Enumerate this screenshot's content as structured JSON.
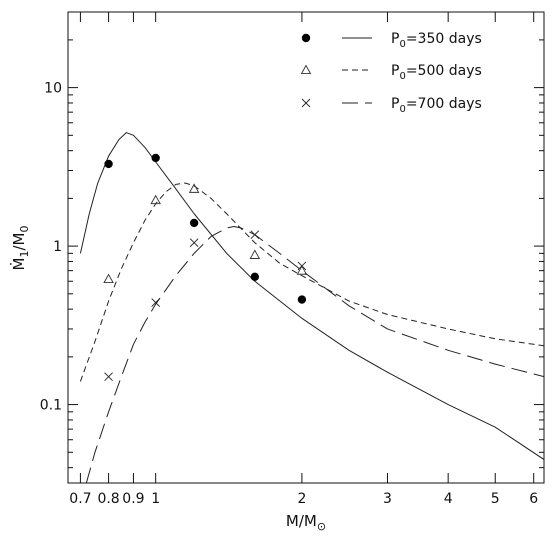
{
  "chart_data": {
    "type": "line",
    "xscale": "log",
    "yscale": "log",
    "xlim": [
      0.66,
      6.3
    ],
    "ylim": [
      0.032,
      30
    ],
    "grid": false,
    "legend_position": "top-right",
    "x_ticks": [
      {
        "value": 0.7,
        "label": "0.7"
      },
      {
        "value": 0.8,
        "label": "0.8"
      },
      {
        "value": 0.9,
        "label": "0.9"
      },
      {
        "value": 1,
        "label": "1"
      },
      {
        "value": 2,
        "label": "2"
      },
      {
        "value": 3,
        "label": "3"
      },
      {
        "value": 4,
        "label": "4"
      },
      {
        "value": 5,
        "label": "5"
      },
      {
        "value": 6,
        "label": "6"
      }
    ],
    "y_ticks": [
      {
        "value": 0.1,
        "label": "0.1"
      },
      {
        "value": 1,
        "label": "1"
      },
      {
        "value": 10,
        "label": "10"
      }
    ],
    "series": [
      {
        "name": "P₀=350 days",
        "marker": "filled-circle",
        "line_style": "solid",
        "points": [
          {
            "x": 0.8,
            "y": 3.3
          },
          {
            "x": 1.0,
            "y": 3.6
          },
          {
            "x": 1.2,
            "y": 1.4
          },
          {
            "x": 1.6,
            "y": 0.64
          },
          {
            "x": 2.0,
            "y": 0.46
          }
        ],
        "curve": [
          {
            "x": 0.7,
            "y": 0.9
          },
          {
            "x": 0.73,
            "y": 1.6
          },
          {
            "x": 0.76,
            "y": 2.5
          },
          {
            "x": 0.8,
            "y": 3.7
          },
          {
            "x": 0.84,
            "y": 4.7
          },
          {
            "x": 0.87,
            "y": 5.2
          },
          {
            "x": 0.9,
            "y": 5.0
          },
          {
            "x": 0.95,
            "y": 4.2
          },
          {
            "x": 1.0,
            "y": 3.4
          },
          {
            "x": 1.1,
            "y": 2.3
          },
          {
            "x": 1.2,
            "y": 1.6
          },
          {
            "x": 1.4,
            "y": 0.9
          },
          {
            "x": 1.6,
            "y": 0.6
          },
          {
            "x": 2.0,
            "y": 0.35
          },
          {
            "x": 2.5,
            "y": 0.22
          },
          {
            "x": 3.0,
            "y": 0.16
          },
          {
            "x": 4.0,
            "y": 0.1
          },
          {
            "x": 5.0,
            "y": 0.072
          },
          {
            "x": 6.3,
            "y": 0.045
          }
        ]
      },
      {
        "name": "P₀=500 days",
        "marker": "open-triangle",
        "line_style": "short-dash",
        "points": [
          {
            "x": 0.8,
            "y": 0.62
          },
          {
            "x": 1.0,
            "y": 1.95
          },
          {
            "x": 1.2,
            "y": 2.3
          },
          {
            "x": 1.6,
            "y": 0.88
          },
          {
            "x": 2.0,
            "y": 0.7
          }
        ],
        "curve": [
          {
            "x": 0.7,
            "y": 0.14
          },
          {
            "x": 0.75,
            "y": 0.25
          },
          {
            "x": 0.8,
            "y": 0.45
          },
          {
            "x": 0.85,
            "y": 0.72
          },
          {
            "x": 0.9,
            "y": 1.05
          },
          {
            "x": 0.95,
            "y": 1.45
          },
          {
            "x": 1.0,
            "y": 1.85
          },
          {
            "x": 1.05,
            "y": 2.2
          },
          {
            "x": 1.1,
            "y": 2.45
          },
          {
            "x": 1.15,
            "y": 2.5
          },
          {
            "x": 1.2,
            "y": 2.4
          },
          {
            "x": 1.3,
            "y": 2.0
          },
          {
            "x": 1.4,
            "y": 1.6
          },
          {
            "x": 1.6,
            "y": 1.05
          },
          {
            "x": 1.8,
            "y": 0.78
          },
          {
            "x": 2.0,
            "y": 0.65
          },
          {
            "x": 2.5,
            "y": 0.45
          },
          {
            "x": 3.0,
            "y": 0.37
          },
          {
            "x": 4.0,
            "y": 0.3
          },
          {
            "x": 5.0,
            "y": 0.26
          },
          {
            "x": 6.3,
            "y": 0.235
          }
        ]
      },
      {
        "name": "P₀=700 days",
        "marker": "cross",
        "line_style": "long-dash",
        "points": [
          {
            "x": 0.8,
            "y": 0.15
          },
          {
            "x": 1.0,
            "y": 0.44
          },
          {
            "x": 1.2,
            "y": 1.05
          },
          {
            "x": 1.6,
            "y": 1.18
          },
          {
            "x": 2.0,
            "y": 0.75
          }
        ],
        "curve": [
          {
            "x": 0.72,
            "y": 0.032
          },
          {
            "x": 0.75,
            "y": 0.05
          },
          {
            "x": 0.8,
            "y": 0.09
          },
          {
            "x": 0.85,
            "y": 0.15
          },
          {
            "x": 0.9,
            "y": 0.24
          },
          {
            "x": 0.95,
            "y": 0.33
          },
          {
            "x": 1.0,
            "y": 0.43
          },
          {
            "x": 1.1,
            "y": 0.65
          },
          {
            "x": 1.2,
            "y": 0.9
          },
          {
            "x": 1.3,
            "y": 1.15
          },
          {
            "x": 1.4,
            "y": 1.3
          },
          {
            "x": 1.45,
            "y": 1.33
          },
          {
            "x": 1.5,
            "y": 1.3
          },
          {
            "x": 1.6,
            "y": 1.18
          },
          {
            "x": 1.8,
            "y": 0.9
          },
          {
            "x": 2.0,
            "y": 0.7
          },
          {
            "x": 2.5,
            "y": 0.42
          },
          {
            "x": 3.0,
            "y": 0.3
          },
          {
            "x": 4.0,
            "y": 0.22
          },
          {
            "x": 5.0,
            "y": 0.18
          },
          {
            "x": 6.3,
            "y": 0.15
          }
        ]
      }
    ]
  }
}
